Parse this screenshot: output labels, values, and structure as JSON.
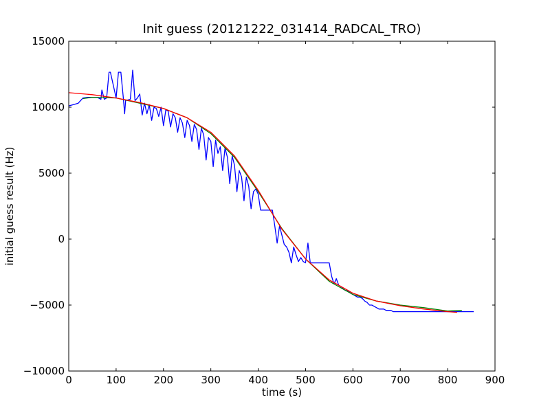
{
  "chart_data": {
    "type": "line",
    "title": "Init guess (20121222_031414_RADCAL_TRO)",
    "xlabel": "time (s)",
    "ylabel": "initial guess result (Hz)",
    "xlim": [
      0,
      900
    ],
    "ylim": [
      -10000,
      15000
    ],
    "xticks": [
      "0",
      "100",
      "200",
      "300",
      "400",
      "500",
      "600",
      "700",
      "800",
      "900"
    ],
    "yticks": [
      "−10000",
      "−5000",
      "0",
      "5000",
      "10000",
      "15000"
    ],
    "grid": false,
    "legend": "none",
    "series": [
      {
        "color": "#0000ff",
        "x": [
          0,
          10,
          20,
          30,
          40,
          50,
          60,
          68,
          70,
          75,
          80,
          85,
          88,
          100,
          105,
          110,
          115,
          118,
          120,
          130,
          135,
          140,
          145,
          150,
          155,
          160,
          165,
          170,
          175,
          180,
          185,
          190,
          195,
          200,
          205,
          210,
          215,
          220,
          225,
          230,
          235,
          240,
          245,
          250,
          255,
          260,
          265,
          270,
          275,
          280,
          285,
          290,
          295,
          300,
          305,
          310,
          315,
          320,
          325,
          330,
          335,
          340,
          345,
          350,
          355,
          360,
          365,
          370,
          375,
          380,
          385,
          390,
          395,
          400,
          405,
          410,
          415,
          420,
          425,
          430,
          435,
          440,
          445,
          450,
          455,
          460,
          465,
          470,
          475,
          480,
          485,
          490,
          495,
          500,
          505,
          510,
          515,
          520,
          525,
          530,
          535,
          540,
          545,
          550,
          555,
          560,
          565,
          570,
          575,
          580,
          585,
          590,
          595,
          600,
          605,
          610,
          615,
          620,
          625,
          630,
          635,
          640,
          645,
          650,
          655,
          660,
          665,
          670,
          675,
          680,
          685,
          690,
          695,
          700,
          705,
          710,
          715,
          720,
          725,
          730,
          735,
          740,
          745,
          750,
          755,
          760,
          765,
          770,
          775,
          780,
          785,
          790,
          795,
          800,
          805,
          810,
          815,
          820,
          825,
          830,
          835,
          840,
          845,
          850,
          855
        ],
        "y": [
          10100,
          10200,
          10300,
          10700,
          10750,
          10750,
          10750,
          10600,
          11300,
          10600,
          10700,
          12650,
          12650,
          10700,
          12650,
          12650,
          10800,
          9500,
          10500,
          10600,
          12800,
          10500,
          10700,
          11000,
          9400,
          10300,
          9500,
          10200,
          9000,
          10000,
          9900,
          9300,
          10000,
          8600,
          9800,
          9700,
          8500,
          9500,
          9200,
          8100,
          9200,
          8800,
          7700,
          9000,
          8600,
          7400,
          8700,
          8300,
          6800,
          8400,
          7900,
          6000,
          7700,
          7400,
          5500,
          7500,
          6500,
          7000,
          5200,
          6900,
          6200,
          4200,
          6300,
          5600,
          3600,
          5200,
          4700,
          2900,
          4700,
          4000,
          2300,
          3600,
          3800,
          3400,
          2200,
          2200,
          2200,
          2200,
          2200,
          2200,
          1000,
          -300,
          1000,
          300,
          -400,
          -600,
          -1000,
          -1800,
          -600,
          -1200,
          -1700,
          -1400,
          -1700,
          -1800,
          -300,
          -1800,
          -1800,
          -1800,
          -1800,
          -1800,
          -1800,
          -1800,
          -1800,
          -1800,
          -2800,
          -3400,
          -3000,
          -3500,
          -3600,
          -3800,
          -3900,
          -3900,
          -4100,
          -4200,
          -4300,
          -4400,
          -4400,
          -4500,
          -4700,
          -4800,
          -5000,
          -5000,
          -5100,
          -5200,
          -5300,
          -5300,
          -5300,
          -5400,
          -5400,
          -5400,
          -5500,
          -5500,
          -5500,
          -5500,
          -5500,
          -5500,
          -5500,
          -5500,
          -5500,
          -5500,
          -5500,
          -5500,
          -5500,
          -5500,
          -5500,
          -5500,
          -5500,
          -5500,
          -5500,
          -5500,
          -5500,
          -5500,
          -5500,
          -5500,
          -5500,
          -5500,
          -5500,
          -5500,
          -5500,
          -5500,
          -5500,
          -5500,
          -5500,
          -5500,
          -5500
        ]
      },
      {
        "color": "#008000",
        "x": [
          30,
          50,
          100,
          150,
          200,
          250,
          300,
          350,
          400,
          450,
          500,
          550,
          600,
          650,
          700,
          750,
          800,
          830
        ],
        "y": [
          10650,
          10750,
          10700,
          10300,
          9900,
          9200,
          8000,
          6200,
          3600,
          800,
          -1500,
          -3200,
          -4200,
          -4700,
          -5000,
          -5200,
          -5450,
          -5400
        ]
      },
      {
        "color": "#ff0000",
        "x": [
          0,
          50,
          100,
          150,
          200,
          250,
          300,
          350,
          400,
          450,
          500,
          550,
          600,
          650,
          700,
          750,
          800,
          820
        ],
        "y": [
          11100,
          10950,
          10700,
          10350,
          9900,
          9200,
          8100,
          6300,
          3700,
          750,
          -1500,
          -3100,
          -4100,
          -4700,
          -5050,
          -5300,
          -5500,
          -5550
        ]
      }
    ]
  }
}
